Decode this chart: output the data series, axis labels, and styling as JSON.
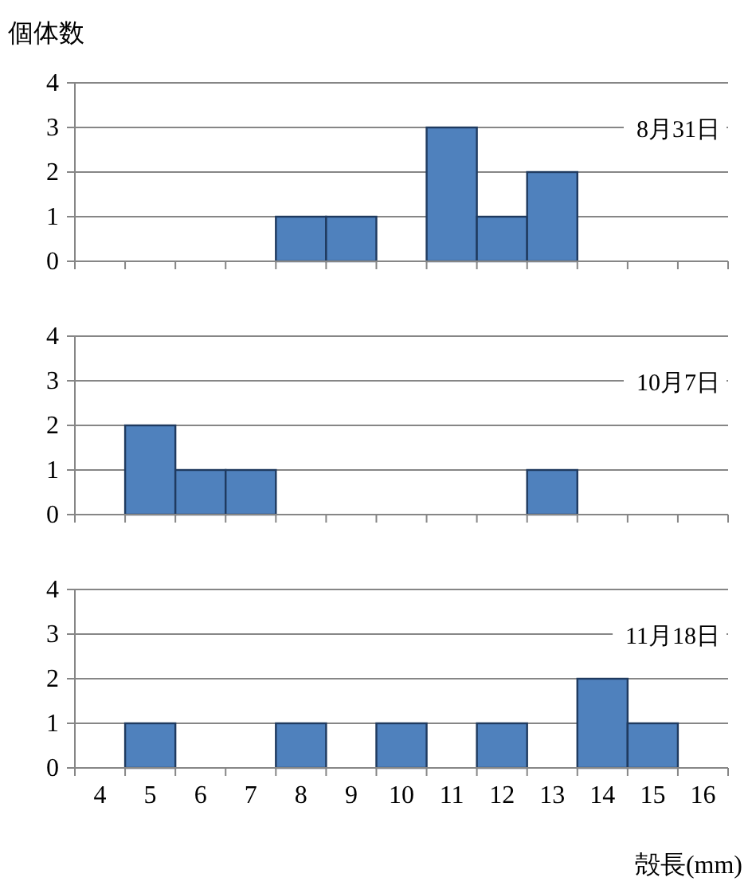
{
  "chart_data": [
    {
      "type": "bar",
      "ylabel": "個体数",
      "categories": [
        null,
        null,
        null,
        null,
        null,
        null,
        null,
        null,
        null,
        null,
        null,
        null,
        null
      ],
      "values": [
        0,
        0,
        0,
        0,
        1,
        1,
        0,
        3,
        1,
        2,
        0,
        0,
        0
      ],
      "color": "#4f81bd",
      "ylim": [
        0,
        4
      ],
      "yticks": [
        0,
        1,
        2,
        3,
        4
      ],
      "grid": "y",
      "tick_labels": "y",
      "annotations": [
        "8月31日"
      ]
    },
    {
      "type": "bar",
      "categories": [
        null,
        null,
        null,
        null,
        null,
        null,
        null,
        null,
        null,
        null,
        null,
        null,
        null
      ],
      "values": [
        0,
        2,
        1,
        1,
        0,
        0,
        0,
        0,
        0,
        1,
        0,
        0,
        0
      ],
      "color": "#4f81bd",
      "ylim": [
        0,
        4
      ],
      "yticks": [
        0,
        1,
        2,
        3,
        4
      ],
      "grid": "y",
      "tick_labels": "y",
      "annotations": [
        "10月7日"
      ]
    },
    {
      "type": "bar",
      "xlabel": "殻長(mm)",
      "categories": [
        "4",
        "5",
        "6",
        "7",
        "8",
        "9",
        "10",
        "11",
        "12",
        "13",
        "14",
        "15",
        "16"
      ],
      "values": [
        0,
        1,
        0,
        0,
        1,
        0,
        1,
        0,
        1,
        0,
        2,
        1,
        0
      ],
      "color": "#4f81bd",
      "ylim": [
        0,
        4
      ],
      "yticks": [
        0,
        1,
        2,
        3,
        4
      ],
      "grid": "y",
      "annotations": [
        "11月18日"
      ]
    }
  ]
}
